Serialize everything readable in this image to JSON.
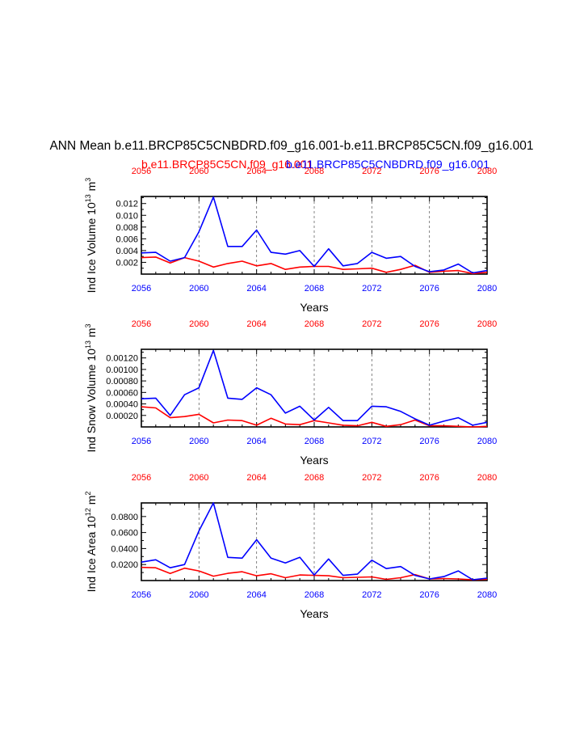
{
  "title": "ANN Mean b.e11.BRCP85C5CNBDRD.f09_g16.001-b.e11.BRCP85C5CN.f09_g16.001",
  "legend": {
    "red_label": "b.e11.BRCP85C5CN.f09_g16.001",
    "blue_label": "b.e11.BRCP85C5CNBDRD.f09_g16.001"
  },
  "colors": {
    "red": "#ff0000",
    "blue": "#0000ff",
    "axis": "#000000"
  },
  "chart_data": [
    {
      "type": "line",
      "xlabel": "Years",
      "ylabel": "Ind Ice Volume 10",
      "ylabel_exp": "13",
      "ylabel_unit": " m",
      "ylabel_unit_exp": "3",
      "xlim": [
        2056,
        2080
      ],
      "ylim": [
        0,
        0.0132
      ],
      "x_ticks": [
        "2056",
        "2060",
        "2064",
        "2068",
        "2072",
        "2076",
        "2080"
      ],
      "y_ticks": [
        "0.002",
        "0.004",
        "0.006",
        "0.008",
        "0.010",
        "0.012"
      ],
      "y_tick_values": [
        0.002,
        0.004,
        0.006,
        0.008,
        0.01,
        0.012
      ],
      "x": [
        2056,
        2057,
        2058,
        2059,
        2060,
        2061,
        2062,
        2063,
        2064,
        2065,
        2066,
        2067,
        2068,
        2069,
        2070,
        2071,
        2072,
        2073,
        2074,
        2075,
        2076,
        2077,
        2078,
        2079,
        2080
      ],
      "series": [
        {
          "color": "red",
          "values": [
            0.0028,
            0.0029,
            0.0019,
            0.0028,
            0.0022,
            0.0012,
            0.0018,
            0.0022,
            0.0014,
            0.0018,
            0.0008,
            0.0012,
            0.0013,
            0.0013,
            0.0008,
            0.0009,
            0.001,
            0.0003,
            0.0008,
            0.0015,
            0.0003,
            0.0005,
            0.0006,
            0.0001,
            0.0003
          ]
        },
        {
          "color": "blue",
          "values": [
            0.0036,
            0.0037,
            0.0022,
            0.0028,
            0.0072,
            0.0131,
            0.0047,
            0.0047,
            0.0075,
            0.0037,
            0.0034,
            0.004,
            0.0013,
            0.0043,
            0.0014,
            0.0018,
            0.0037,
            0.0027,
            0.003,
            0.0013,
            0.0004,
            0.0007,
            0.0017,
            0.0002,
            0.0006
          ]
        }
      ]
    },
    {
      "type": "line",
      "xlabel": "Years",
      "ylabel": "Ind Snow Volume 10",
      "ylabel_exp": "13",
      "ylabel_unit": " m",
      "ylabel_unit_exp": "3",
      "xlim": [
        2056,
        2080
      ],
      "ylim": [
        0,
        0.00135
      ],
      "x_ticks": [
        "2056",
        "2060",
        "2064",
        "2068",
        "2072",
        "2076",
        "2080"
      ],
      "y_ticks": [
        "0.00020",
        "0.00040",
        "0.00060",
        "0.00080",
        "0.00100",
        "0.00120"
      ],
      "y_tick_values": [
        0.0002,
        0.0004,
        0.0006,
        0.0008,
        0.001,
        0.0012
      ],
      "x": [
        2056,
        2057,
        2058,
        2059,
        2060,
        2061,
        2062,
        2063,
        2064,
        2065,
        2066,
        2067,
        2068,
        2069,
        2070,
        2071,
        2072,
        2073,
        2074,
        2075,
        2076,
        2077,
        2078,
        2079,
        2080
      ],
      "series": [
        {
          "color": "red",
          "values": [
            0.00035,
            0.00033,
            0.00016,
            0.00018,
            0.00022,
            7e-05,
            0.00012,
            0.00011,
            3e-05,
            0.00015,
            5e-05,
            4e-05,
            0.00011,
            7e-05,
            3e-05,
            2e-05,
            8e-05,
            1e-05,
            4e-05,
            0.00012,
            2e-05,
            2e-05,
            1e-05,
            0.0,
            1e-05
          ]
        },
        {
          "color": "blue",
          "values": [
            0.00049,
            0.0005,
            0.0002,
            0.00056,
            0.00068,
            0.00133,
            0.0005,
            0.00048,
            0.00068,
            0.00056,
            0.00024,
            0.00036,
            0.00012,
            0.00034,
            0.00011,
            0.00011,
            0.00036,
            0.00035,
            0.00027,
            0.00014,
            3e-05,
            0.0001,
            0.00016,
            3e-05,
            8e-05
          ]
        }
      ]
    },
    {
      "type": "line",
      "xlabel": "Years",
      "ylabel": "Ind Ice Area 10",
      "ylabel_exp": "12",
      "ylabel_unit": " m",
      "ylabel_unit_exp": "2",
      "xlim": [
        2056,
        2080
      ],
      "ylim": [
        0,
        0.097
      ],
      "x_ticks": [
        "2056",
        "2060",
        "2064",
        "2068",
        "2072",
        "2076",
        "2080"
      ],
      "y_ticks": [
        "0.0200",
        "0.0400",
        "0.0600",
        "0.0800"
      ],
      "y_tick_values": [
        0.02,
        0.04,
        0.06,
        0.08
      ],
      "x": [
        2056,
        2057,
        2058,
        2059,
        2060,
        2061,
        2062,
        2063,
        2064,
        2065,
        2066,
        2067,
        2068,
        2069,
        2070,
        2071,
        2072,
        2073,
        2074,
        2075,
        2076,
        2077,
        2078,
        2079,
        2080
      ],
      "series": [
        {
          "color": "red",
          "values": [
            0.0165,
            0.016,
            0.0088,
            0.0155,
            0.012,
            0.0055,
            0.009,
            0.011,
            0.006,
            0.0085,
            0.0035,
            0.007,
            0.0065,
            0.006,
            0.0035,
            0.004,
            0.0045,
            0.0015,
            0.0035,
            0.0075,
            0.002,
            0.0025,
            0.002,
            0.001,
            0.0015
          ]
        },
        {
          "color": "blue",
          "values": [
            0.023,
            0.026,
            0.016,
            0.02,
            0.062,
            0.097,
            0.029,
            0.028,
            0.051,
            0.028,
            0.022,
            0.029,
            0.007,
            0.027,
            0.0065,
            0.008,
            0.0255,
            0.015,
            0.0175,
            0.0065,
            0.002,
            0.005,
            0.012,
            0.001,
            0.003
          ]
        }
      ]
    }
  ]
}
